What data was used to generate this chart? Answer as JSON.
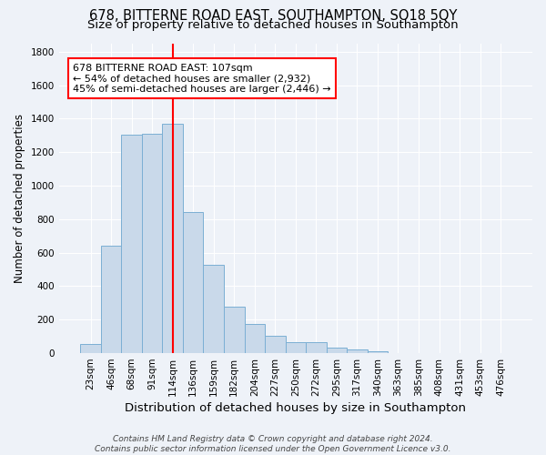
{
  "title1": "678, BITTERNE ROAD EAST, SOUTHAMPTON, SO18 5QY",
  "title2": "Size of property relative to detached houses in Southampton",
  "xlabel": "Distribution of detached houses by size in Southampton",
  "ylabel": "Number of detached properties",
  "categories": [
    "23sqm",
    "46sqm",
    "68sqm",
    "91sqm",
    "114sqm",
    "136sqm",
    "159sqm",
    "182sqm",
    "204sqm",
    "227sqm",
    "250sqm",
    "272sqm",
    "295sqm",
    "317sqm",
    "340sqm",
    "363sqm",
    "385sqm",
    "408sqm",
    "431sqm",
    "453sqm",
    "476sqm"
  ],
  "values": [
    55,
    640,
    1305,
    1310,
    1370,
    840,
    525,
    275,
    175,
    105,
    65,
    65,
    35,
    20,
    12,
    0,
    0,
    0,
    0,
    0,
    0
  ],
  "bar_color": "#c9d9ea",
  "bar_edgecolor": "#7bafd4",
  "bg_color": "#eef2f8",
  "grid_color": "#ffffff",
  "vline_x": 4.0,
  "vline_color": "red",
  "annotation_text": "678 BITTERNE ROAD EAST: 107sqm\n← 54% of detached houses are smaller (2,932)\n45% of semi-detached houses are larger (2,446) →",
  "annotation_box_color": "white",
  "annotation_box_edgecolor": "red",
  "ylim": [
    0,
    1850
  ],
  "footnote": "Contains HM Land Registry data © Crown copyright and database right 2024.\nContains public sector information licensed under the Open Government Licence v3.0.",
  "title1_fontsize": 10.5,
  "title2_fontsize": 9.5,
  "xlabel_fontsize": 9.5,
  "ylabel_fontsize": 8.5,
  "tick_fontsize": 7.5,
  "annot_fontsize": 8,
  "footnote_fontsize": 6.5
}
